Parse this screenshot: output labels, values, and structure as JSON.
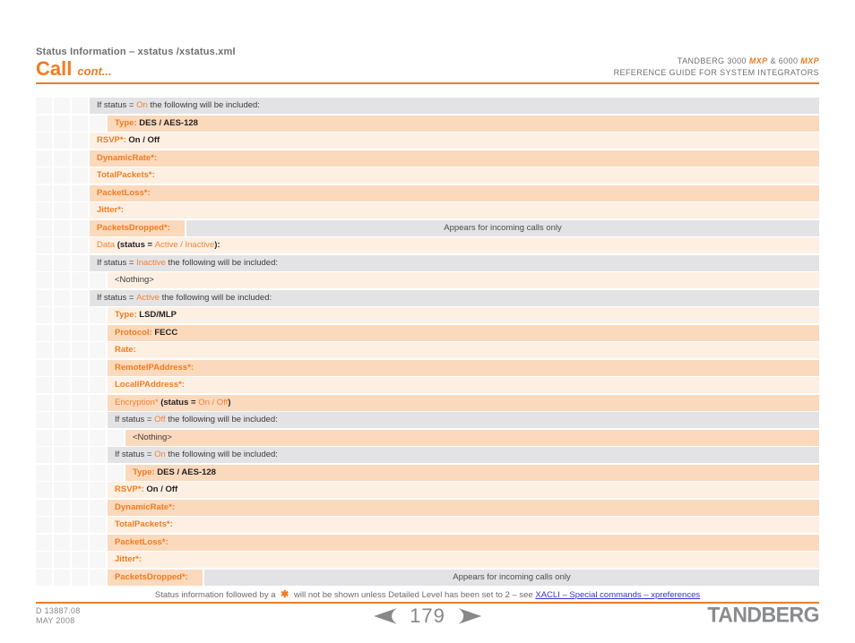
{
  "header": {
    "breadcrumb": "Status Information – xstatus /xstatus.xml",
    "title": "Call",
    "title_suffix": "cont...",
    "brand": {
      "l1a": "TANDBERG 3000 ",
      "mxp": "MXP",
      "l1b": " & 6000 ",
      "line2": "REFERENCE GUIDE FOR SYSTEM INTEGRATORS"
    }
  },
  "colors": {
    "accent_orange": "#f47b20",
    "row_gray": "#e3e3e5",
    "row_peach_dark": "#fbd9bc",
    "row_peach_light": "#fdf0e3",
    "link_blue": "#3333cc"
  },
  "table": {
    "rows": [
      {
        "indent": 3,
        "bg": "gray",
        "segments": [
          {
            "t": "If status = ",
            "s": "plain"
          },
          {
            "t": "On",
            "s": "orangeReg"
          },
          {
            "t": " the following will be included:",
            "s": "plain"
          }
        ]
      },
      {
        "indent": 4,
        "bg": "dark",
        "segments": [
          {
            "t": "Type: ",
            "s": "orange"
          },
          {
            "t": "DES / AES-128",
            "s": "bold"
          }
        ]
      },
      {
        "indent": 3,
        "bg": "light",
        "segments": [
          {
            "t": "RSVP*: ",
            "s": "orange"
          },
          {
            "t": "On / Off",
            "s": "bold"
          }
        ]
      },
      {
        "indent": 3,
        "bg": "dark",
        "segments": [
          {
            "t": "DynamicRate*:",
            "s": "orange"
          }
        ]
      },
      {
        "indent": 3,
        "bg": "light",
        "segments": [
          {
            "t": "TotalPackets*:",
            "s": "orange"
          }
        ]
      },
      {
        "indent": 3,
        "bg": "dark",
        "segments": [
          {
            "t": "PacketLoss*:",
            "s": "orange"
          }
        ]
      },
      {
        "indent": 3,
        "bg": "light",
        "segments": [
          {
            "t": "Jitter*:",
            "s": "orange"
          }
        ]
      },
      {
        "indent": 3,
        "bg": "dark",
        "segments": [
          {
            "t": "PacketsDropped*:",
            "s": "orange"
          }
        ],
        "note": "Appears for incoming calls only"
      },
      {
        "indent": 3,
        "bg": "light",
        "segments": [
          {
            "t": "Data ",
            "s": "orangeReg"
          },
          {
            "t": "(status = ",
            "s": "bold"
          },
          {
            "t": "Active / Inactive",
            "s": "orangeReg"
          },
          {
            "t": "):",
            "s": "bold"
          }
        ]
      },
      {
        "indent": 3,
        "bg": "gray",
        "segments": [
          {
            "t": "If status = ",
            "s": "plain"
          },
          {
            "t": "Inactive",
            "s": "orangeReg"
          },
          {
            "t": " the following will be included:",
            "s": "plain"
          }
        ]
      },
      {
        "indent": 4,
        "bg": "light",
        "segments": [
          {
            "t": "<Nothing>",
            "s": "plain"
          }
        ]
      },
      {
        "indent": 3,
        "bg": "gray",
        "segments": [
          {
            "t": "If status = ",
            "s": "plain"
          },
          {
            "t": "Active",
            "s": "orangeReg"
          },
          {
            "t": " the following will be included:",
            "s": "plain"
          }
        ]
      },
      {
        "indent": 4,
        "bg": "light",
        "segments": [
          {
            "t": "Type: ",
            "s": "orange"
          },
          {
            "t": "LSD/MLP",
            "s": "bold"
          }
        ]
      },
      {
        "indent": 4,
        "bg": "dark",
        "segments": [
          {
            "t": "Protocol: ",
            "s": "orange"
          },
          {
            "t": "FECC",
            "s": "bold"
          }
        ]
      },
      {
        "indent": 4,
        "bg": "light",
        "segments": [
          {
            "t": "Rate:",
            "s": "orange"
          }
        ]
      },
      {
        "indent": 4,
        "bg": "dark",
        "segments": [
          {
            "t": "RemoteIPAddress*:",
            "s": "orange"
          }
        ]
      },
      {
        "indent": 4,
        "bg": "light",
        "segments": [
          {
            "t": "LocalIPAddress*:",
            "s": "orange"
          }
        ]
      },
      {
        "indent": 4,
        "bg": "dark",
        "segments": [
          {
            "t": "Encryption*",
            "s": "orangeReg"
          },
          {
            "t": " (status = ",
            "s": "bold"
          },
          {
            "t": "On / Off",
            "s": "orangeReg"
          },
          {
            "t": ")",
            "s": "bold"
          }
        ]
      },
      {
        "indent": 4,
        "bg": "gray",
        "segments": [
          {
            "t": "If status = ",
            "s": "plain"
          },
          {
            "t": "Off",
            "s": "orangeReg"
          },
          {
            "t": " the following will be included:",
            "s": "plain"
          }
        ]
      },
      {
        "indent": 5,
        "bg": "dark",
        "segments": [
          {
            "t": "<Nothing>",
            "s": "plain"
          }
        ]
      },
      {
        "indent": 4,
        "bg": "gray",
        "segments": [
          {
            "t": "If status = ",
            "s": "plain"
          },
          {
            "t": "On",
            "s": "orangeReg"
          },
          {
            "t": " the following will be included:",
            "s": "plain"
          }
        ]
      },
      {
        "indent": 5,
        "bg": "dark",
        "segments": [
          {
            "t": "Type: ",
            "s": "orange"
          },
          {
            "t": "DES / AES-128",
            "s": "bold"
          }
        ]
      },
      {
        "indent": 4,
        "bg": "light",
        "segments": [
          {
            "t": "RSVP*: ",
            "s": "orange"
          },
          {
            "t": "On / Off",
            "s": "bold"
          }
        ]
      },
      {
        "indent": 4,
        "bg": "dark",
        "segments": [
          {
            "t": "DynamicRate*:",
            "s": "orange"
          }
        ]
      },
      {
        "indent": 4,
        "bg": "light",
        "segments": [
          {
            "t": "TotalPackets*:",
            "s": "orange"
          }
        ]
      },
      {
        "indent": 4,
        "bg": "dark",
        "segments": [
          {
            "t": "PacketLoss*:",
            "s": "orange"
          }
        ]
      },
      {
        "indent": 4,
        "bg": "light",
        "segments": [
          {
            "t": "Jitter*:",
            "s": "orange"
          }
        ]
      },
      {
        "indent": 4,
        "bg": "dark",
        "segments": [
          {
            "t": "PacketsDropped*:",
            "s": "orange"
          }
        ],
        "note": "Appears for incoming calls only"
      }
    ]
  },
  "footnote": {
    "part1": "Status information followed by a ",
    "star": "✱",
    "part2": " will not be shown unless Detailed Level has been set to 2 – see ",
    "link": "XACLI – Special commands – xpreferences"
  },
  "footer": {
    "doc_number": "D 13887.08",
    "doc_date": "MAY 2008",
    "page_number": "179",
    "logo": "TANDBERG"
  }
}
